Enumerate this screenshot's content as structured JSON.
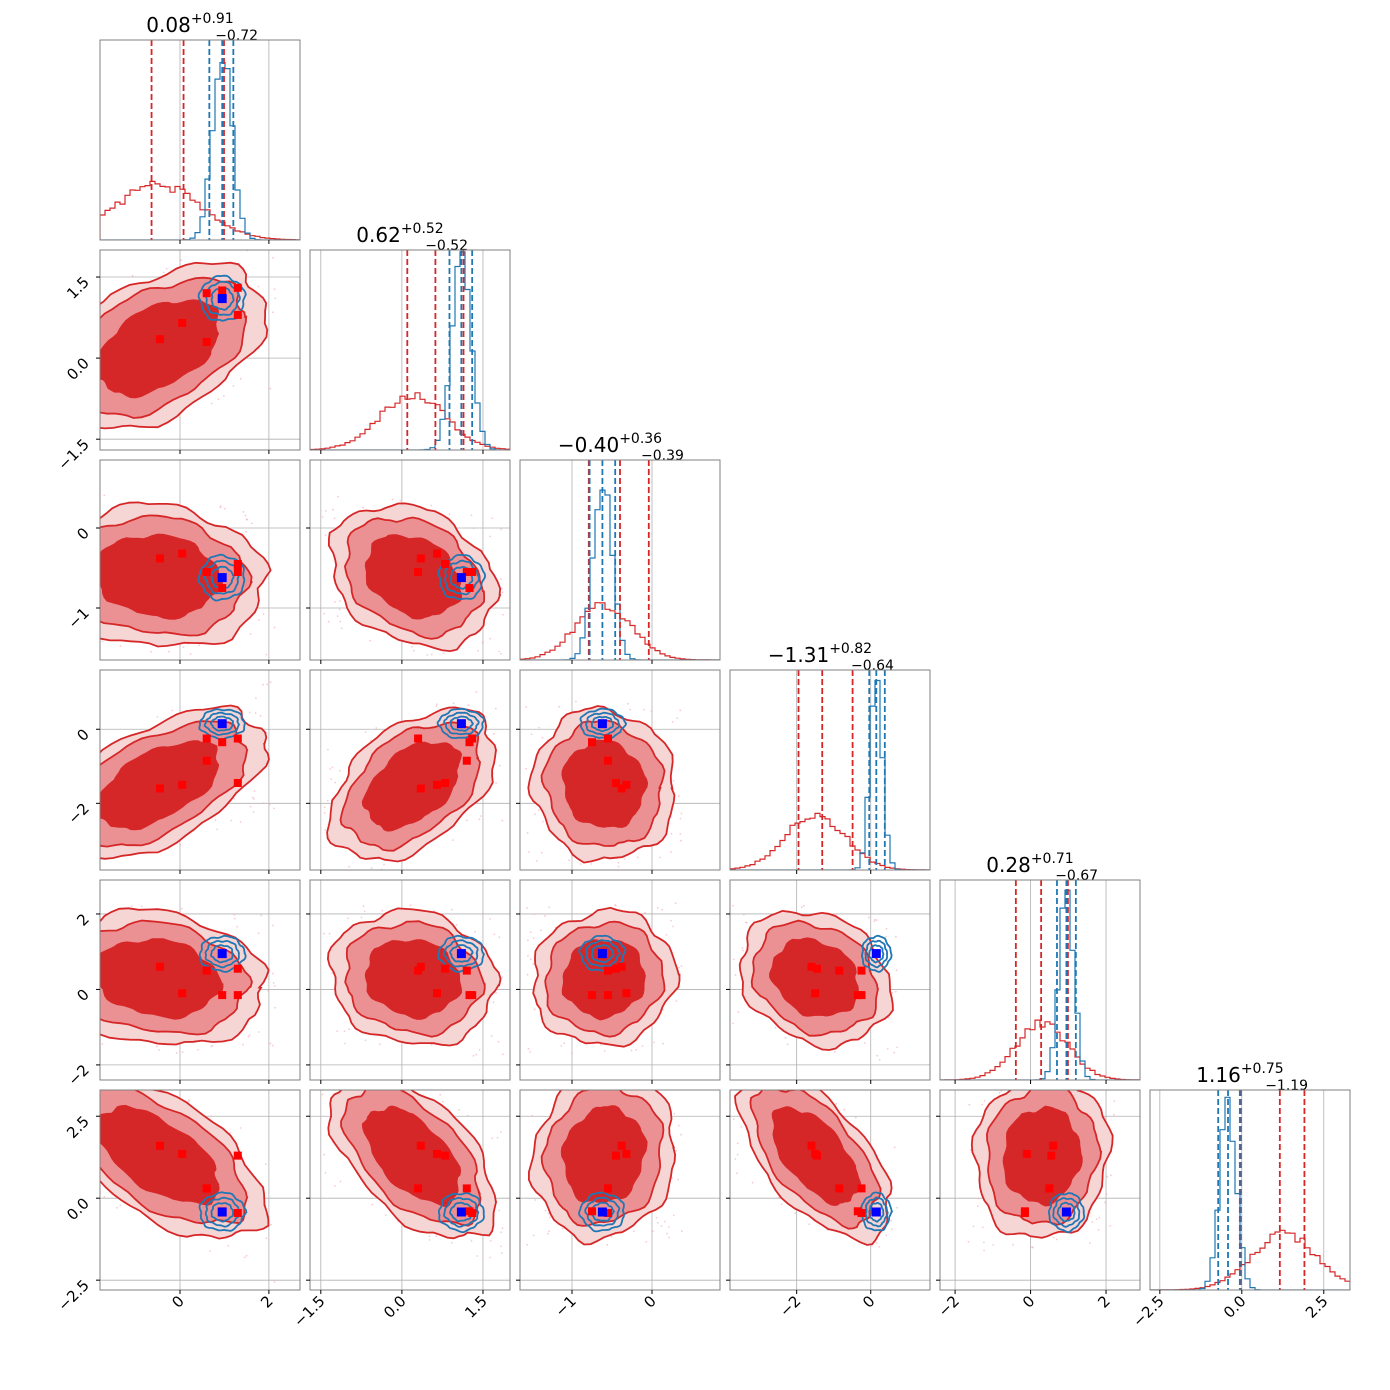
{
  "chart_data": {
    "type": "corner",
    "parameter_count": 6,
    "titles": [
      {
        "value": "0.08",
        "upper": "+0.91",
        "lower": "−0.72"
      },
      {
        "value": "0.62",
        "upper": "+0.52",
        "lower": "−0.52"
      },
      {
        "value": "−0.40",
        "upper": "+0.36",
        "lower": "−0.39"
      },
      {
        "value": "−1.31",
        "upper": "+0.82",
        "lower": "−0.64"
      },
      {
        "value": "0.28",
        "upper": "+0.71",
        "lower": "−0.67"
      },
      {
        "value": "1.16",
        "upper": "+0.75",
        "lower": "−1.19"
      }
    ],
    "axes": [
      {
        "range": [
          -1.8,
          2.7
        ],
        "ticks": [
          {
            "v": 0,
            "t": "0"
          },
          {
            "v": 2,
            "t": "2"
          }
        ]
      },
      {
        "range": [
          -1.7,
          2.0
        ],
        "ticks": [
          {
            "v": -1.5,
            "t": "−1.5"
          },
          {
            "v": 0,
            "t": "0.0"
          },
          {
            "v": 1.5,
            "t": "1.5"
          }
        ]
      },
      {
        "range": [
          -1.65,
          0.85
        ],
        "ticks": [
          {
            "v": -1,
            "t": "−1"
          },
          {
            "v": 0,
            "t": "0"
          }
        ]
      },
      {
        "range": [
          -3.8,
          1.6
        ],
        "ticks": [
          {
            "v": -2,
            "t": "−2"
          },
          {
            "v": 0,
            "t": "0"
          }
        ]
      },
      {
        "range": [
          -2.4,
          2.9
        ],
        "ticks": [
          {
            "v": -2,
            "t": "−2"
          },
          {
            "v": 0,
            "t": "0"
          },
          {
            "v": 2,
            "t": "2"
          }
        ]
      },
      {
        "range": [
          -2.8,
          3.3
        ],
        "ticks": [
          {
            "v": -2.5,
            "t": "−2.5"
          },
          {
            "v": 0,
            "t": "0.0"
          },
          {
            "v": 2.5,
            "t": "2.5"
          }
        ]
      }
    ],
    "series": [
      {
        "name": "",
        "color": "#d62728",
        "fill_colors": [
          "#f6d5d5",
          "#ec9193",
          "#d62728"
        ],
        "mean": [
          -0.5,
          0.2,
          -0.6,
          -1.5,
          0.3,
          1.3
        ],
        "sigma": [
          0.95,
          0.6,
          0.35,
          0.8,
          0.7,
          1.0
        ],
        "correlation": [
          [
            1,
            0.45,
            -0.1,
            0.55,
            -0.15,
            -0.6
          ],
          [
            0.45,
            1,
            -0.25,
            0.45,
            -0.1,
            -0.55
          ],
          [
            -0.1,
            -0.25,
            1,
            -0.05,
            0.05,
            0.1
          ],
          [
            0.55,
            0.45,
            -0.05,
            1,
            -0.2,
            -0.6
          ],
          [
            -0.15,
            -0.1,
            0.05,
            -0.2,
            1,
            0.05
          ],
          [
            -0.6,
            -0.55,
            0.1,
            -0.6,
            0.05,
            1
          ]
        ],
        "quantile_lines": [
          [
            -0.64,
            0.08,
            0.99
          ],
          [
            0.1,
            0.62,
            1.14
          ],
          [
            -0.79,
            -0.4,
            -0.04
          ],
          [
            -1.95,
            -1.31,
            -0.49
          ],
          [
            -0.39,
            0.28,
            0.99
          ],
          [
            -0.03,
            1.16,
            1.91
          ]
        ]
      },
      {
        "name": "",
        "color": "#1f77b4",
        "mean": [
          0.95,
          1.1,
          -0.62,
          0.15,
          0.95,
          -0.42
        ],
        "sigma": [
          0.22,
          0.18,
          0.12,
          0.17,
          0.2,
          0.25
        ],
        "correlation": [
          [
            1,
            0,
            0,
            0,
            0,
            0
          ],
          [
            0,
            1,
            0,
            0,
            0,
            0
          ],
          [
            0,
            0,
            1,
            0,
            0,
            0
          ],
          [
            0,
            0,
            0,
            1,
            0,
            0
          ],
          [
            0,
            0,
            0,
            0,
            1,
            0
          ],
          [
            0,
            0,
            0,
            0,
            0,
            1
          ]
        ],
        "quantile_lines": [
          [
            0.66,
            0.95,
            1.2
          ],
          [
            0.88,
            1.1,
            1.3
          ],
          [
            -0.78,
            -0.62,
            -0.46
          ],
          [
            -0.04,
            0.15,
            0.38
          ],
          [
            0.7,
            0.95,
            1.2
          ],
          [
            -0.72,
            -0.42,
            -0.06
          ]
        ]
      }
    ],
    "markers": {
      "truth": {
        "color": "#0000ff",
        "values": [
          0.95,
          1.1,
          -0.62,
          0.15,
          0.95,
          -0.42
        ]
      },
      "samples": {
        "color": "#ff0000",
        "points": [
          [
            -0.45,
            0.35,
            -0.38,
            -1.6,
            0.6,
            1.6
          ],
          [
            0.05,
            0.65,
            -0.32,
            -1.5,
            -0.1,
            1.35
          ],
          [
            0.6,
            1.2,
            -0.55,
            -0.85,
            0.5,
            0.3
          ],
          [
            0.6,
            0.3,
            -0.55,
            -0.25,
            0.5,
            0.3
          ],
          [
            1.3,
            1.3,
            -0.55,
            -0.25,
            -0.15,
            -0.45
          ],
          [
            1.3,
            0.8,
            -0.45,
            -1.45,
            0.55,
            1.3
          ],
          [
            0.95,
            1.25,
            -0.75,
            -0.35,
            -0.15,
            -0.4
          ]
        ]
      }
    },
    "histogram_bins": 40,
    "grid": true,
    "legend": "none"
  }
}
